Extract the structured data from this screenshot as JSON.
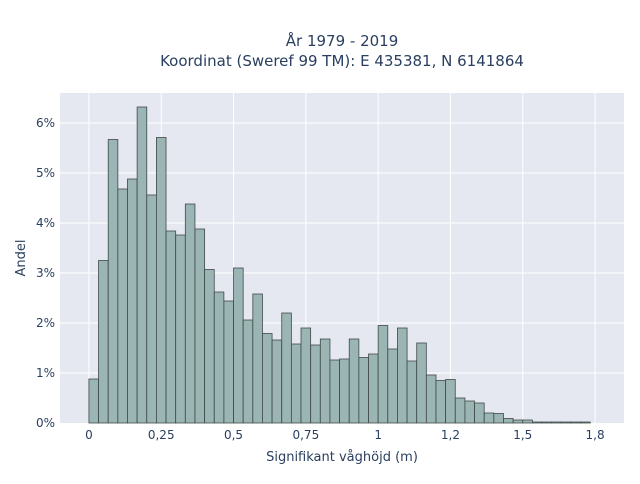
{
  "chart_data": {
    "type": "bar",
    "title_lines": [
      "År 1979 - 2019",
      "Koordinat (Sweref 99 TM): E 435381, N 6141864"
    ],
    "xlabel": "Signifikant våghöjd (m)",
    "ylabel": "Andel",
    "xlim": [
      -0.1,
      1.85
    ],
    "ylim": [
      0,
      6.6
    ],
    "bin_width": 0.0333,
    "x_ticks": [
      {
        "value": 0,
        "label": "0"
      },
      {
        "value": 0.25,
        "label": "0,25"
      },
      {
        "value": 0.5,
        "label": "0,5"
      },
      {
        "value": 0.75,
        "label": "0,75"
      },
      {
        "value": 1,
        "label": "1"
      },
      {
        "value": 1.25,
        "label": "1,2"
      },
      {
        "value": 1.5,
        "label": "1,5"
      },
      {
        "value": 1.75,
        "label": "1,8"
      }
    ],
    "y_ticks": [
      {
        "value": 0,
        "label": "0%"
      },
      {
        "value": 1,
        "label": "1%"
      },
      {
        "value": 2,
        "label": "2%"
      },
      {
        "value": 3,
        "label": "3%"
      },
      {
        "value": 4,
        "label": "4%"
      },
      {
        "value": 5,
        "label": "5%"
      },
      {
        "value": 6,
        "label": "6%"
      }
    ],
    "bin_starts": [
      0,
      0.0333,
      0.0667,
      0.1,
      0.1333,
      0.1667,
      0.2,
      0.2333,
      0.2667,
      0.3,
      0.3333,
      0.3667,
      0.4,
      0.4333,
      0.4667,
      0.5,
      0.5333,
      0.5667,
      0.6,
      0.6333,
      0.6667,
      0.7,
      0.7333,
      0.7667,
      0.8,
      0.8333,
      0.8667,
      0.9,
      0.9333,
      0.9667,
      1.0,
      1.0333,
      1.0667,
      1.1,
      1.1333,
      1.1667,
      1.2,
      1.2333,
      1.2667,
      1.3,
      1.3333,
      1.3667,
      1.4,
      1.4333,
      1.4667,
      1.5,
      1.5333,
      1.5667,
      1.6,
      1.6333,
      1.6667,
      1.7
    ],
    "values": [
      0.88,
      3.25,
      5.67,
      4.68,
      4.88,
      6.32,
      4.56,
      5.71,
      3.84,
      3.76,
      4.38,
      3.88,
      3.07,
      2.62,
      2.44,
      3.1,
      2.06,
      2.58,
      1.79,
      1.66,
      2.2,
      1.58,
      1.9,
      1.56,
      1.68,
      1.26,
      1.28,
      1.68,
      1.31,
      1.38,
      1.95,
      1.48,
      1.9,
      1.24,
      1.6,
      0.96,
      0.85,
      0.87,
      0.5,
      0.44,
      0.4,
      0.2,
      0.19,
      0.09,
      0.06,
      0.06,
      0.02,
      0.02,
      0.02,
      0.02,
      0.02,
      0.02
    ],
    "colors": {
      "bar_fill": "#9ab5b3",
      "bar_stroke": "#3f4a49",
      "plot_background": "#e5e8f1",
      "grid": "#ffffff",
      "text": "#2a3f5f"
    },
    "grid": true
  }
}
